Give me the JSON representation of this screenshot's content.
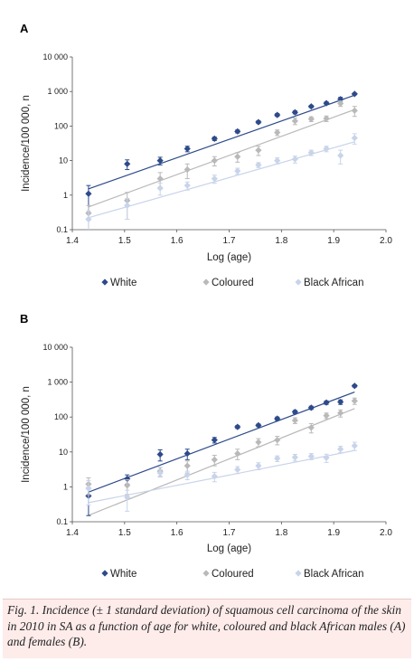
{
  "caption": "Fig. 1. Incidence (± 1 standard deviation) of squamous cell carcinoma of the skin in 2010 in SA as a function of age for white, coloured and black African males (A) and females (B).",
  "colors": {
    "white": "#2d4a8a",
    "coloured": "#b9b9b9",
    "black_african": "#c8d4ea"
  },
  "chart_data": [
    {
      "type": "scatter",
      "panel": "A",
      "xlabel": "Log (age)",
      "ylabel": "Incidence/100 000, n",
      "xlim": [
        1.4,
        2.0
      ],
      "ylim": [
        0.1,
        10000
      ],
      "yscale": "log",
      "xticks": [
        "1.4",
        "1.5",
        "1.6",
        "1.7",
        "1.8",
        "1.9",
        "2.0"
      ],
      "yticks": [
        "0.1",
        "1",
        "10",
        "100",
        "1 000",
        "10 000"
      ],
      "legend": [
        "White",
        "Coloured",
        "Black African"
      ],
      "legend_position": "bottom",
      "grid": false,
      "series": [
        {
          "name": "White",
          "x": [
            1.431,
            1.505,
            1.568,
            1.62,
            1.672,
            1.716,
            1.756,
            1.792,
            1.826,
            1.857,
            1.886,
            1.913,
            1.94
          ],
          "y": [
            1.1,
            8,
            10,
            22,
            43,
            70,
            130,
            210,
            250,
            370,
            460,
            600,
            850
          ],
          "err": [
            0.8,
            2.5,
            2.5,
            4,
            5,
            7,
            12,
            20,
            25,
            30,
            40,
            80,
            50
          ],
          "trend": {
            "x": [
              1.43,
              1.94
            ],
            "y": [
              1.5,
              780
            ]
          }
        },
        {
          "name": "Coloured",
          "x": [
            1.431,
            1.505,
            1.568,
            1.62,
            1.672,
            1.716,
            1.756,
            1.792,
            1.826,
            1.857,
            1.886,
            1.913,
            1.94
          ],
          "y": [
            0.3,
            0.7,
            3,
            5.5,
            10,
            13,
            20,
            65,
            140,
            160,
            165,
            450,
            280
          ],
          "err": [
            0.2,
            0.5,
            1.5,
            2.5,
            3,
            4,
            6,
            12,
            30,
            25,
            30,
            80,
            90
          ],
          "trend": {
            "x": [
              1.43,
              1.94
            ],
            "y": [
              0.45,
              300
            ]
          }
        },
        {
          "name": "Black African",
          "x": [
            1.431,
            1.505,
            1.568,
            1.62,
            1.672,
            1.716,
            1.756,
            1.792,
            1.826,
            1.857,
            1.886,
            1.913,
            1.94
          ],
          "y": [
            0.2,
            0.5,
            1.6,
            1.9,
            3,
            5,
            7.5,
            10,
            11,
            17,
            22,
            14,
            45
          ],
          "err": [
            0.15,
            0.3,
            0.6,
            0.5,
            0.8,
            1,
            1.2,
            2,
            2.5,
            3,
            4,
            6,
            15
          ],
          "trend": {
            "x": [
              1.43,
              1.94
            ],
            "y": [
              0.22,
              35
            ]
          }
        }
      ]
    },
    {
      "type": "scatter",
      "panel": "B",
      "xlabel": "Log (age)",
      "ylabel": "Incidence/100 000, n",
      "xlim": [
        1.4,
        2.0
      ],
      "ylim": [
        0.1,
        10000
      ],
      "yscale": "log",
      "xticks": [
        "1.4",
        "1.5",
        "1.6",
        "1.7",
        "1.8",
        "1.9",
        "2.0"
      ],
      "yticks": [
        "0.1",
        "1",
        "10",
        "100",
        "1 000",
        "10 000"
      ],
      "legend": [
        "White",
        "Coloured",
        "Black African"
      ],
      "legend_position": "bottom",
      "grid": false,
      "series": [
        {
          "name": "White",
          "x": [
            1.431,
            1.505,
            1.568,
            1.62,
            1.672,
            1.716,
            1.756,
            1.792,
            1.826,
            1.857,
            1.886,
            1.913,
            1.94
          ],
          "y": [
            0.55,
            1.7,
            8.5,
            9,
            22,
            52,
            58,
            90,
            140,
            185,
            260,
            270,
            780
          ],
          "err": [
            0.4,
            0.5,
            3,
            3,
            4,
            5,
            5,
            10,
            15,
            20,
            30,
            40,
            60
          ],
          "trend": {
            "x": [
              1.43,
              1.94
            ],
            "y": [
              0.7,
              520
            ]
          }
        },
        {
          "name": "Coloured",
          "x": [
            1.431,
            1.505,
            1.568,
            1.62,
            1.672,
            1.716,
            1.756,
            1.792,
            1.826,
            1.857,
            1.886,
            1.913,
            1.94
          ],
          "y": [
            1.2,
            1.1,
            2.8,
            4,
            6,
            9,
            19,
            22,
            80,
            50,
            110,
            130,
            290
          ],
          "err": [
            0.6,
            0.5,
            0.8,
            1.5,
            2,
            3,
            5,
            6,
            15,
            15,
            20,
            30,
            60
          ],
          "trend": {
            "x": [
              1.43,
              1.94
            ],
            "y": [
              0.15,
              175
            ]
          }
        },
        {
          "name": "Black African",
          "x": [
            1.431,
            1.505,
            1.568,
            1.62,
            1.672,
            1.716,
            1.756,
            1.792,
            1.826,
            1.857,
            1.886,
            1.913,
            1.94
          ],
          "y": [
            0.9,
            0.5,
            2.5,
            2.2,
            2,
            3.1,
            4,
            6.5,
            7,
            7.5,
            6.8,
            12,
            15
          ],
          "err": [
            0.6,
            0.3,
            0.6,
            0.6,
            0.6,
            0.7,
            0.9,
            1.2,
            1.5,
            1.5,
            1.8,
            2.5,
            4
          ],
          "trend": {
            "x": [
              1.43,
              1.94
            ],
            "y": [
              0.35,
              11
            ]
          }
        }
      ]
    }
  ]
}
